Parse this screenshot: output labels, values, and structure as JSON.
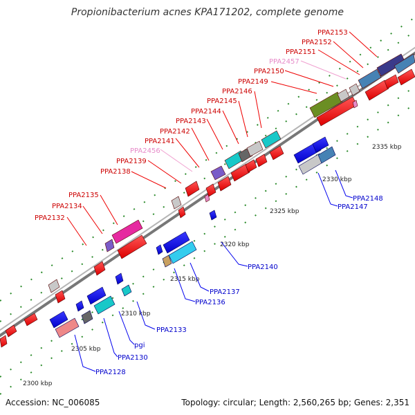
{
  "title": "Propionibacterium acnes KPA171202, complete genome",
  "footer": {
    "accession": "Accession: NC_006085",
    "summary": "Topology: circular; Length: 2,560,265 bp; Genes: 2,351"
  },
  "colors": {
    "forward_label": "#cc0000",
    "reverse_label": "#0000cc",
    "pseudo_label": "#e68ac8",
    "red_gene": "#ee1111",
    "blue_gene": "#1a1ae6",
    "tick": "#228822"
  },
  "axis_ticks": [
    "2300 kbp",
    "2305 kbp",
    "2310 kbp",
    "2315 kbp",
    "2320 kbp",
    "2325 kbp",
    "2330 kbp",
    "2335 kbp"
  ],
  "forward_labels": [
    "PPA2132",
    "PPA2134",
    "PPA2135",
    "PPA2138",
    "PPA2139",
    "PPA2456",
    "PPA2141",
    "PPA2142",
    "PPA2143",
    "PPA2144",
    "PPA2145",
    "PPA2146",
    "PPA2149",
    "PPA2150",
    "PPA2457",
    "PPA2151",
    "PPA2152",
    "PPA2153"
  ],
  "reverse_labels": [
    "PPA2128",
    "PPA2130",
    "pgi",
    "PPA2133",
    "PPA2136",
    "PPA2137",
    "PPA2140",
    "PPA2147",
    "PPA2148"
  ]
}
